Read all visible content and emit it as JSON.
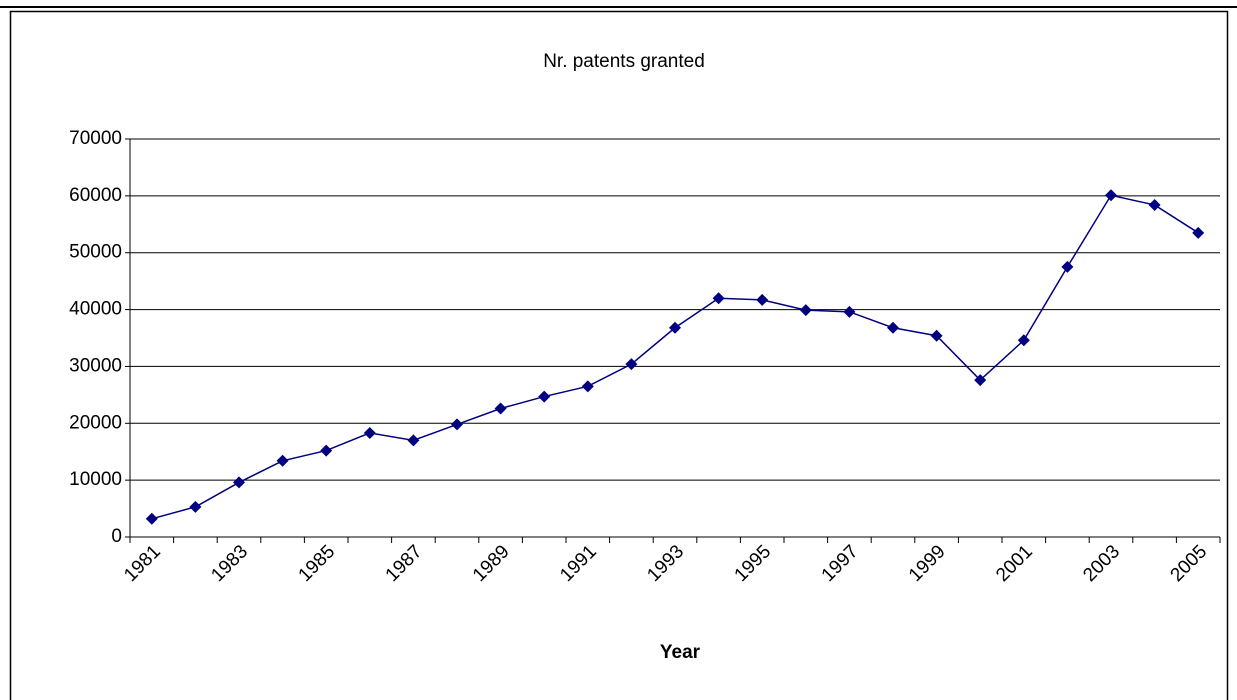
{
  "chart_data": {
    "type": "line",
    "title": "Nr. patents granted",
    "x_label": "Year",
    "categories": [
      "1981",
      null,
      "1983",
      null,
      "1985",
      null,
      "1987",
      null,
      "1989",
      null,
      "1991",
      null,
      "1993",
      null,
      "1995",
      null,
      "1997",
      null,
      "1999",
      null,
      "2001",
      null,
      "2003",
      null,
      "2005"
    ],
    "values": [
      3200,
      5300,
      9600,
      13400,
      15200,
      18300,
      17000,
      19800,
      22600,
      24700,
      26500,
      30400,
      36800,
      42000,
      41700,
      39900,
      39600,
      36800,
      35400,
      27600,
      34600,
      47500,
      60100,
      58400,
      53500
    ],
    "color": "#000080",
    "ylim": [
      0,
      70000
    ],
    "yticks": [
      0,
      10000,
      20000,
      30000,
      40000,
      50000,
      60000,
      70000
    ],
    "grid": true
  }
}
